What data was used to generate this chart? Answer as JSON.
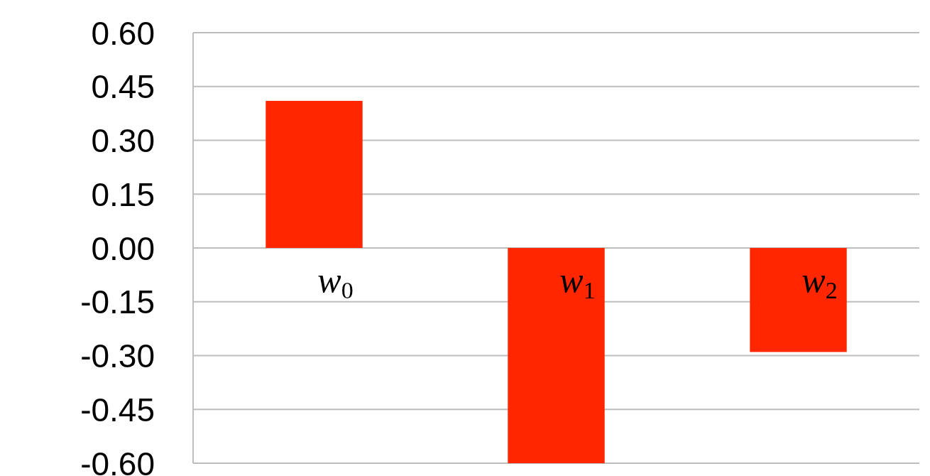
{
  "chart_data": {
    "type": "bar",
    "categories": [
      "w$_{0}$",
      "w$_{1}$",
      "w$_{2}$"
    ],
    "values": [
      0.41,
      -0.6,
      -0.29
    ],
    "color": "#ff2600",
    "ylim": [
      -0.6,
      0.6
    ],
    "yticks": [
      {
        "value": 0.6,
        "label": "0.60"
      },
      {
        "value": 0.45,
        "label": "0.45"
      },
      {
        "value": 0.3,
        "label": "0.30"
      },
      {
        "value": 0.15,
        "label": "0.15"
      },
      {
        "value": 0,
        "label": "0.00"
      },
      {
        "value": -0.15,
        "label": "-0.15"
      },
      {
        "value": -0.3,
        "label": "-0.30"
      },
      {
        "value": -0.45,
        "label": "-0.45"
      },
      {
        "value": -0.6,
        "label": "-0.60"
      }
    ],
    "grid": "y"
  }
}
